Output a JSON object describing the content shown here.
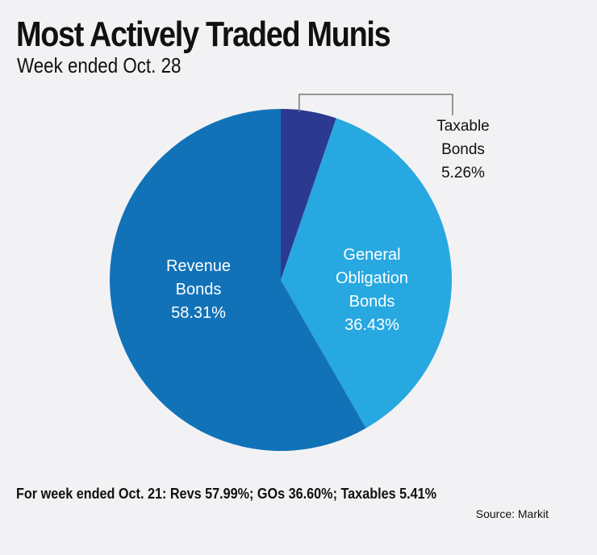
{
  "title": "Most Actively Traded Munis",
  "subtitle": "Week ended Oct. 28",
  "footnote": "For week ended Oct. 21: Revs 57.99%; GOs 36.60%; Taxables 5.41%",
  "source": "Source: Markit",
  "chart_data": {
    "type": "pie",
    "slices": [
      {
        "label_lines": [
          "Taxable",
          "Bonds"
        ],
        "value_label": "5.26%",
        "value": 5.26,
        "color": "#2b3990",
        "label_color": "#111111"
      },
      {
        "label_lines": [
          "General",
          "Obligation",
          "Bonds"
        ],
        "value_label": "36.43%",
        "value": 36.43,
        "color": "#27a8e0",
        "label_color": "#ffffff"
      },
      {
        "label_lines": [
          "Revenue",
          "Bonds"
        ],
        "value_label": "58.31%",
        "value": 58.31,
        "color": "#1272b8",
        "label_color": "#ffffff"
      }
    ]
  }
}
